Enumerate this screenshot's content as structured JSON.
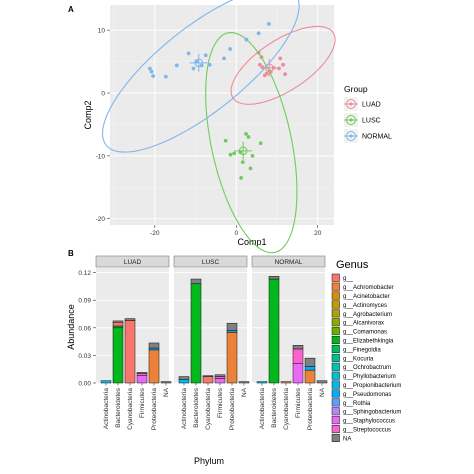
{
  "chart_data": [
    {
      "panel": "A",
      "type": "scatter",
      "xlabel": "Comp1",
      "ylabel": "Comp2",
      "xlim": [
        -31,
        24
      ],
      "ylim": [
        -21,
        14
      ],
      "xticks": [
        -20,
        0,
        20
      ],
      "yticks": [
        10,
        0,
        -10,
        -20
      ],
      "grid": true,
      "legend": {
        "title": "Group",
        "position": "right"
      },
      "series": [
        {
          "name": "LUAD",
          "color": "#f08a9b",
          "points": [
            [
              5.5,
              6.4
            ],
            [
              6.2,
              5.7
            ],
            [
              5.8,
              4.5
            ],
            [
              7.0,
              2.8
            ],
            [
              8.5,
              3.4
            ],
            [
              9.2,
              4.0
            ],
            [
              10.5,
              3.9
            ],
            [
              11.5,
              4.5
            ],
            [
              10.8,
              5.5
            ],
            [
              12.0,
              3.0
            ],
            [
              6.5,
              4.1
            ],
            [
              7.5,
              3.1
            ]
          ],
          "centroid": [
            8.1,
            4.0
          ],
          "ellipse": {
            "cx": 11.5,
            "cy": 4.4,
            "rx": 13.5,
            "ry": 4.4,
            "angle": 20
          }
        },
        {
          "name": "LUSC",
          "color": "#6fcc5c",
          "points": [
            [
              -2.6,
              -7.6
            ],
            [
              -1.4,
              -9.8
            ],
            [
              -0.5,
              -9.6
            ],
            [
              1.0,
              -9.4
            ],
            [
              1.6,
              -11.0
            ],
            [
              3.0,
              -7.0
            ],
            [
              4.0,
              -10.0
            ],
            [
              3.5,
              -12.0
            ],
            [
              6.0,
              -8.0
            ],
            [
              2.4,
              -6.5
            ],
            [
              1.2,
              -13.5
            ]
          ],
          "centroid": [
            1.7,
            -9.2
          ],
          "ellipse": {
            "cx": 3.7,
            "cy": -7.9,
            "rx": 18.5,
            "ry": 9.5,
            "angle": 112
          }
        },
        {
          "name": "NORMAL",
          "color": "#7fb6ea",
          "points": [
            [
              -21.2,
              3.9
            ],
            [
              -20.8,
              3.4
            ],
            [
              -20.4,
              2.7
            ],
            [
              -17.3,
              2.6
            ],
            [
              -14.6,
              4.4
            ],
            [
              -11.7,
              6.3
            ],
            [
              -9.8,
              5.0
            ],
            [
              -8.5,
              4.4
            ],
            [
              -6.5,
              4.5
            ],
            [
              -3.0,
              5.5
            ],
            [
              -1.5,
              7.0
            ],
            [
              2.5,
              8.5
            ],
            [
              5.5,
              9.5
            ],
            [
              8.0,
              11.0
            ],
            [
              -10.5,
              3.9
            ],
            [
              -7.5,
              6.0
            ]
          ],
          "centroid": [
            -9.2,
            4.8
          ],
          "ellipse": {
            "cx": -8.7,
            "cy": 3.7,
            "rx": 26.4,
            "ry": 7.6,
            "angle": 25
          }
        }
      ]
    },
    {
      "panel": "B",
      "type": "bar",
      "stacked": true,
      "xlabel": "Phylum",
      "ylabel": "Abundance",
      "ylim": [
        0,
        0.125
      ],
      "yticks": [
        "0.12",
        "0.09",
        "0.06",
        "0.03",
        "0.00"
      ],
      "facets": [
        "LUAD",
        "LUSC",
        "NORMAL"
      ],
      "categories": [
        "Actinobacteria",
        "Bacteroidetes",
        "Cyanobacteria",
        "Firmicutes",
        "Proteobacteria",
        "NA"
      ],
      "legend": {
        "title": "Genus",
        "position": "right",
        "items": [
          {
            "label": "g__",
            "color": "#f8766d"
          },
          {
            "label": "g__Achromobacter",
            "color": "#ec8239"
          },
          {
            "label": "g__Acinetobacter",
            "color": "#db8e00"
          },
          {
            "label": "g__Actinomyces",
            "color": "#c79800"
          },
          {
            "label": "g__Agrobacterium",
            "color": "#aea200"
          },
          {
            "label": "g__Alcanivorax",
            "color": "#8faa00"
          },
          {
            "label": "g__Comamonas",
            "color": "#64b200"
          },
          {
            "label": "g__Elizabethkingia",
            "color": "#00b81b"
          },
          {
            "label": "g__Finegoldia",
            "color": "#00bd5c"
          },
          {
            "label": "g__Kocuria",
            "color": "#00c08d"
          },
          {
            "label": "g__Ochrobactrum",
            "color": "#00c1b2"
          },
          {
            "label": "g__Phyllobacterium",
            "color": "#00bfd4"
          },
          {
            "label": "g__Propionibacterium",
            "color": "#00b8f3"
          },
          {
            "label": "g__Pseudomonas",
            "color": "#00adfa"
          },
          {
            "label": "g__Rothia",
            "color": "#619cff"
          },
          {
            "label": "g__Sphingobacterium",
            "color": "#b983ff"
          },
          {
            "label": "g__Staphylococcus",
            "color": "#e76bf3"
          },
          {
            "label": "g__Streptococcus",
            "color": "#fd61d1"
          },
          {
            "label": "NA",
            "color": "#808080"
          }
        ]
      },
      "panels": [
        {
          "facet": "LUAD",
          "stacks": [
            [
              {
                "genus": "g__Propionibacterium",
                "value": 0.0025
              }
            ],
            [
              {
                "genus": "g__Elizabethkingia",
                "value": 0.06
              },
              {
                "genus": "g__Finegoldia",
                "value": 0.002
              },
              {
                "genus": "g__",
                "value": 0.004
              },
              {
                "genus": "NA",
                "value": 0.0015
              }
            ],
            [
              {
                "genus": "g__",
                "value": 0.068
              },
              {
                "genus": "NA",
                "value": 0.002
              }
            ],
            [
              {
                "genus": "g__Staphylococcus",
                "value": 0.008
              },
              {
                "genus": "g__Streptococcus",
                "value": 0.0025
              },
              {
                "genus": "NA",
                "value": 0.001
              }
            ],
            [
              {
                "genus": "g__Achromobacter",
                "value": 0.036
              },
              {
                "genus": "g__Pseudomonas",
                "value": 0.002
              },
              {
                "genus": "NA",
                "value": 0.0055
              }
            ],
            [
              {
                "genus": "NA",
                "value": 0.0015
              }
            ]
          ]
        },
        {
          "facet": "LUSC",
          "stacks": [
            [
              {
                "genus": "g__Propionibacterium",
                "value": 0.004
              },
              {
                "genus": "NA",
                "value": 0.003
              }
            ],
            [
              {
                "genus": "g__Elizabethkingia",
                "value": 0.108
              },
              {
                "genus": "NA",
                "value": 0.005
              }
            ],
            [
              {
                "genus": "g__",
                "value": 0.007
              },
              {
                "genus": "NA",
                "value": 0.001
              }
            ],
            [
              {
                "genus": "g__Staphylococcus",
                "value": 0.005
              },
              {
                "genus": "g__Streptococcus",
                "value": 0.002
              },
              {
                "genus": "NA",
                "value": 0.002
              }
            ],
            [
              {
                "genus": "g__Achromobacter",
                "value": 0.055
              },
              {
                "genus": "g__Pseudomonas",
                "value": 0.002
              },
              {
                "genus": "NA",
                "value": 0.008
              }
            ],
            [
              {
                "genus": "NA",
                "value": 0.0015
              }
            ]
          ]
        },
        {
          "facet": "NORMAL",
          "stacks": [
            [
              {
                "genus": "g__Propionibacterium",
                "value": 0.0015
              }
            ],
            [
              {
                "genus": "g__Elizabethkingia",
                "value": 0.113
              },
              {
                "genus": "NA",
                "value": 0.003
              }
            ],
            [
              {
                "genus": "g__",
                "value": 0.0015
              }
            ],
            [
              {
                "genus": "g__Staphylococcus",
                "value": 0.021
              },
              {
                "genus": "g__Streptococcus",
                "value": 0.016
              },
              {
                "genus": "NA",
                "value": 0.004
              }
            ],
            [
              {
                "genus": "g__Achromobacter",
                "value": 0.014
              },
              {
                "genus": "g__Pseudomonas",
                "value": 0.004
              },
              {
                "genus": "NA",
                "value": 0.009
              }
            ],
            [
              {
                "genus": "NA",
                "value": 0.0025
              }
            ]
          ]
        }
      ]
    }
  ]
}
